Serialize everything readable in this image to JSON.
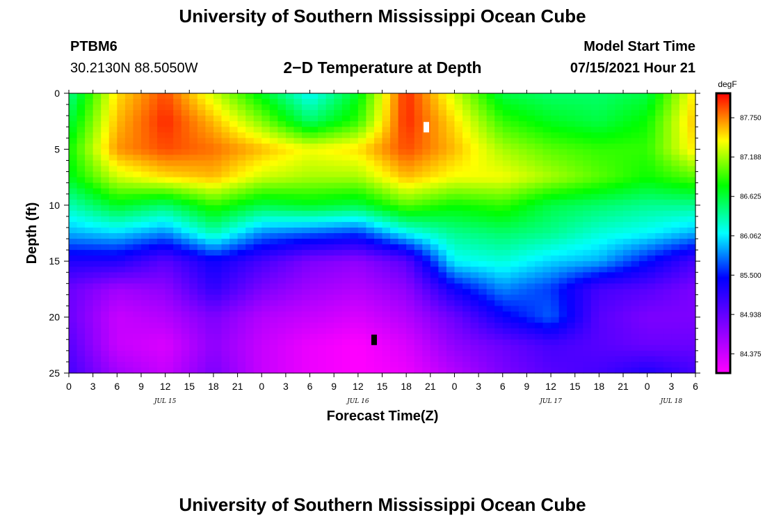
{
  "page": {
    "title": "University of Southern Mississippi Ocean Cube",
    "footer_title": "University of Southern Mississippi Ocean Cube",
    "station_id": "PTBM6",
    "coordinates": "30.2130N  88.5050W",
    "chart_title": "2−D Temperature at Depth",
    "model_start_label": "Model Start Time",
    "model_start_value": "07/15/2021 Hour 21"
  },
  "chart_data": {
    "type": "heatmap",
    "title": "2−D Temperature at Depth",
    "xlabel": "Forecast Time(Z)",
    "ylabel": "Depth (ft)",
    "x_unit": "hours from 00Z Jul 15",
    "xlim": [
      0,
      78
    ],
    "ylim": [
      0,
      25
    ],
    "x_ticks": [
      0,
      3,
      6,
      9,
      12,
      15,
      18,
      21,
      24,
      27,
      30,
      33,
      36,
      39,
      42,
      45,
      48,
      51,
      54,
      57,
      60,
      63,
      66,
      69,
      72,
      75,
      78
    ],
    "x_tick_labels": [
      "0",
      "3",
      "6",
      "9",
      "12",
      "15",
      "18",
      "21",
      "0",
      "3",
      "6",
      "9",
      "12",
      "15",
      "18",
      "21",
      "0",
      "3",
      "6",
      "9",
      "12",
      "15",
      "18",
      "21",
      "0",
      "3",
      "6"
    ],
    "date_labels": [
      {
        "x": 12,
        "label": "JUL 15"
      },
      {
        "x": 36,
        "label": "JUL 16"
      },
      {
        "x": 60,
        "label": "JUL 17"
      },
      {
        "x": 75,
        "label": "JUL 18"
      }
    ],
    "y_major_ticks": [
      0,
      5,
      10,
      15,
      20,
      25
    ],
    "colorbar": {
      "unit": "degF",
      "min": 84.1,
      "max": 88.1,
      "tick_values": [
        87.75,
        87.188,
        86.625,
        86.062,
        85.5,
        84.938,
        84.375
      ],
      "tick_labels": [
        "87.750",
        "87.188",
        "86.625",
        "86.062",
        "85.500",
        "84.938",
        "84.375"
      ]
    },
    "depths": [
      0,
      2.5,
      5,
      7.5,
      10,
      12.5,
      15,
      17.5,
      20,
      22.5,
      25
    ],
    "times": [
      0,
      6,
      12,
      18,
      24,
      30,
      36,
      42,
      48,
      54,
      60,
      66,
      72,
      78
    ],
    "temperature": [
      [
        86.4,
        87.5,
        87.9,
        87.3,
        86.7,
        86.1,
        86.7,
        88.0,
        87.3,
        86.6,
        86.5,
        86.5,
        86.6,
        87.5
      ],
      [
        86.6,
        87.6,
        88.0,
        87.6,
        87.1,
        86.5,
        86.9,
        88.0,
        87.5,
        86.9,
        86.7,
        86.6,
        86.8,
        87.6
      ],
      [
        86.8,
        87.7,
        87.9,
        87.8,
        87.6,
        87.4,
        87.5,
        87.9,
        87.6,
        87.2,
        87.0,
        86.9,
        86.9,
        87.5
      ],
      [
        86.7,
        87.3,
        87.5,
        87.6,
        87.3,
        87.2,
        87.2,
        87.6,
        87.4,
        87.4,
        87.2,
        87.0,
        86.8,
        87.0
      ],
      [
        86.3,
        86.7,
        86.5,
        86.9,
        86.6,
        86.7,
        86.6,
        87.0,
        86.8,
        86.9,
        86.6,
        86.5,
        86.4,
        86.4
      ],
      [
        85.9,
        86.0,
        85.8,
        86.3,
        85.8,
        85.7,
        85.6,
        86.1,
        86.4,
        86.5,
        86.4,
        86.2,
        86.1,
        85.9
      ],
      [
        85.3,
        85.3,
        85.0,
        85.4,
        85.1,
        84.8,
        84.7,
        85.0,
        86.1,
        86.2,
        86.0,
        85.9,
        85.5,
        85.1
      ],
      [
        84.9,
        84.6,
        84.7,
        85.2,
        84.8,
        84.6,
        84.5,
        84.7,
        85.4,
        85.8,
        85.6,
        85.1,
        85.0,
        84.8
      ],
      [
        84.9,
        84.4,
        84.5,
        84.8,
        84.5,
        84.4,
        84.3,
        84.5,
        84.9,
        85.4,
        85.7,
        85.0,
        84.8,
        84.8
      ],
      [
        85.0,
        84.4,
        84.3,
        84.7,
        84.4,
        84.2,
        84.1,
        84.3,
        84.7,
        84.9,
        85.1,
        85.0,
        84.9,
        84.9
      ],
      [
        85.1,
        84.6,
        84.4,
        84.8,
        84.4,
        84.2,
        84.1,
        84.2,
        84.5,
        84.8,
        85.0,
        85.1,
        85.3,
        85.1
      ]
    ],
    "markers": [
      {
        "x": 44.5,
        "depth": 3,
        "color": "#ffffff"
      },
      {
        "x": 38.0,
        "depth": 22,
        "color": "#000000"
      }
    ]
  }
}
